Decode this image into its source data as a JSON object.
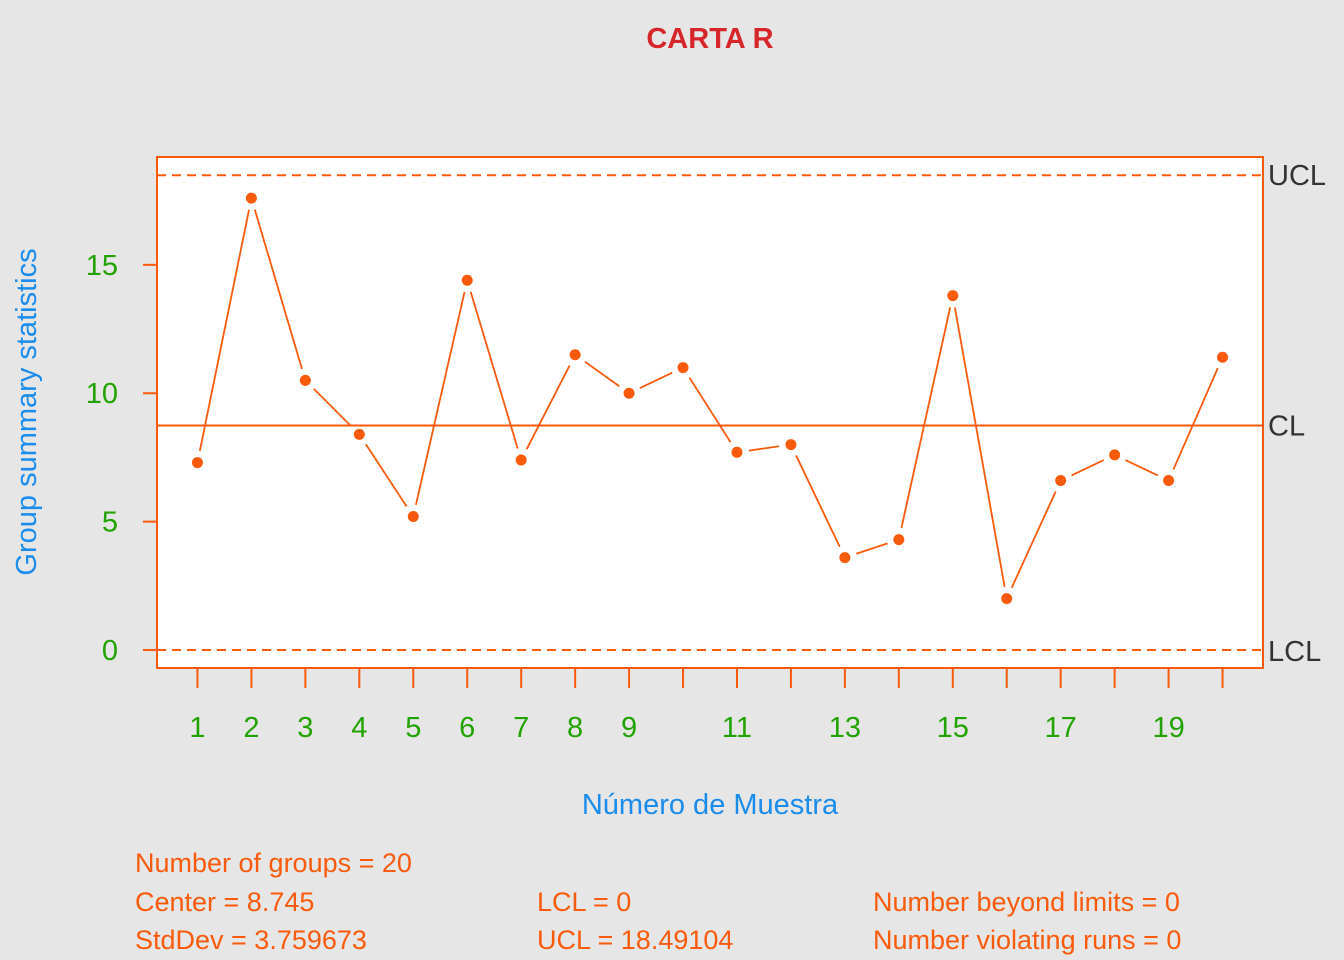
{
  "colors": {
    "background": "#e6e6e6",
    "plot_background": "#ffffff",
    "accent": "#f95a0b",
    "title": "#d7262a",
    "axis_title": "#1a8ceb",
    "tick_labels": "#21a300",
    "limit_labels": "#333333",
    "stats_text": "#f95a0b"
  },
  "chart_data": {
    "type": "line",
    "title": "CARTA R",
    "xlabel": "Número de Muestra",
    "ylabel": "Group summary statistics",
    "x": [
      1,
      2,
      3,
      4,
      5,
      6,
      7,
      8,
      9,
      10,
      11,
      12,
      13,
      14,
      15,
      16,
      17,
      18,
      19,
      20
    ],
    "values": [
      7.3,
      17.6,
      10.5,
      8.4,
      5.2,
      14.4,
      7.4,
      11.5,
      10.0,
      11.0,
      7.7,
      8.0,
      3.6,
      4.3,
      13.8,
      2.0,
      6.6,
      7.6,
      6.6,
      11.4
    ],
    "xlim": [
      0.25,
      20.75
    ],
    "ylim": [
      -0.7,
      19.2
    ],
    "x_tick_labels": [
      "1",
      "2",
      "3",
      "4",
      "5",
      "6",
      "7",
      "8",
      "9",
      "11",
      "13",
      "15",
      "17",
      "19"
    ],
    "x_tick_label_positions": [
      1,
      2,
      3,
      4,
      5,
      6,
      7,
      8,
      9,
      11,
      13,
      15,
      17,
      19
    ],
    "y_ticks": [
      0,
      5,
      10,
      15
    ],
    "center_line": 8.745,
    "ucl": 18.49104,
    "lcl": 0,
    "limit_labels": {
      "ucl": "UCL",
      "cl": "CL",
      "lcl": "LCL"
    },
    "grid": false,
    "legend": "none"
  },
  "stats": {
    "groups": "Number of groups = 20",
    "center": "Center = 8.745",
    "stddev": "StdDev = 3.759673",
    "lcl": "LCL = 0",
    "ucl": "UCL = 18.49104",
    "beyond": "Number beyond limits = 0",
    "violating": "Number violating runs = 0"
  }
}
